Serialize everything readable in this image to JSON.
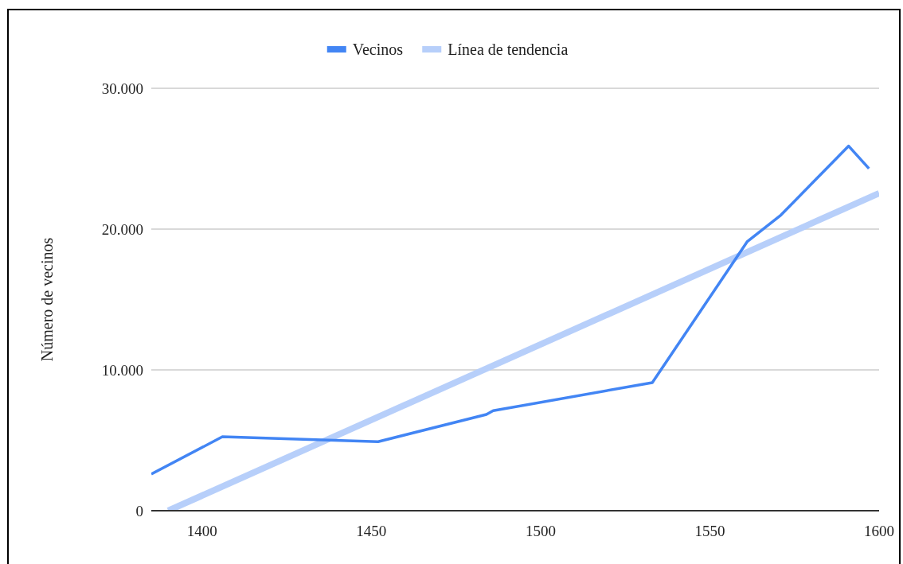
{
  "chart_data": {
    "type": "line",
    "ylabel": "Número de vecinos",
    "x": [
      1385,
      1406,
      1452,
      1484,
      1486,
      1533,
      1561,
      1571,
      1591,
      1597
    ],
    "series": [
      {
        "name": "Vecinos",
        "color": "#4285f4",
        "values": [
          2600,
          5250,
          4900,
          6840,
          7100,
          9100,
          19100,
          21000,
          25900,
          24300
        ]
      },
      {
        "name": "Línea de tendencia",
        "type": "line",
        "color": "#b7cffa",
        "x": [
          1390,
          1600
        ],
        "values": [
          0,
          22550
        ]
      }
    ],
    "xlim": [
      1385,
      1600
    ],
    "xticks": [
      1400,
      1450,
      1500,
      1550,
      1600
    ],
    "ylim": [
      0,
      30000
    ],
    "yticks": [
      {
        "value": 0,
        "label": "0"
      },
      {
        "value": 10000,
        "label": "10.000"
      },
      {
        "value": 20000,
        "label": "20.000"
      },
      {
        "value": 30000,
        "label": "30.000"
      }
    ],
    "grid": "y",
    "legend": "top",
    "line_style": "solid",
    "marker": "none"
  }
}
